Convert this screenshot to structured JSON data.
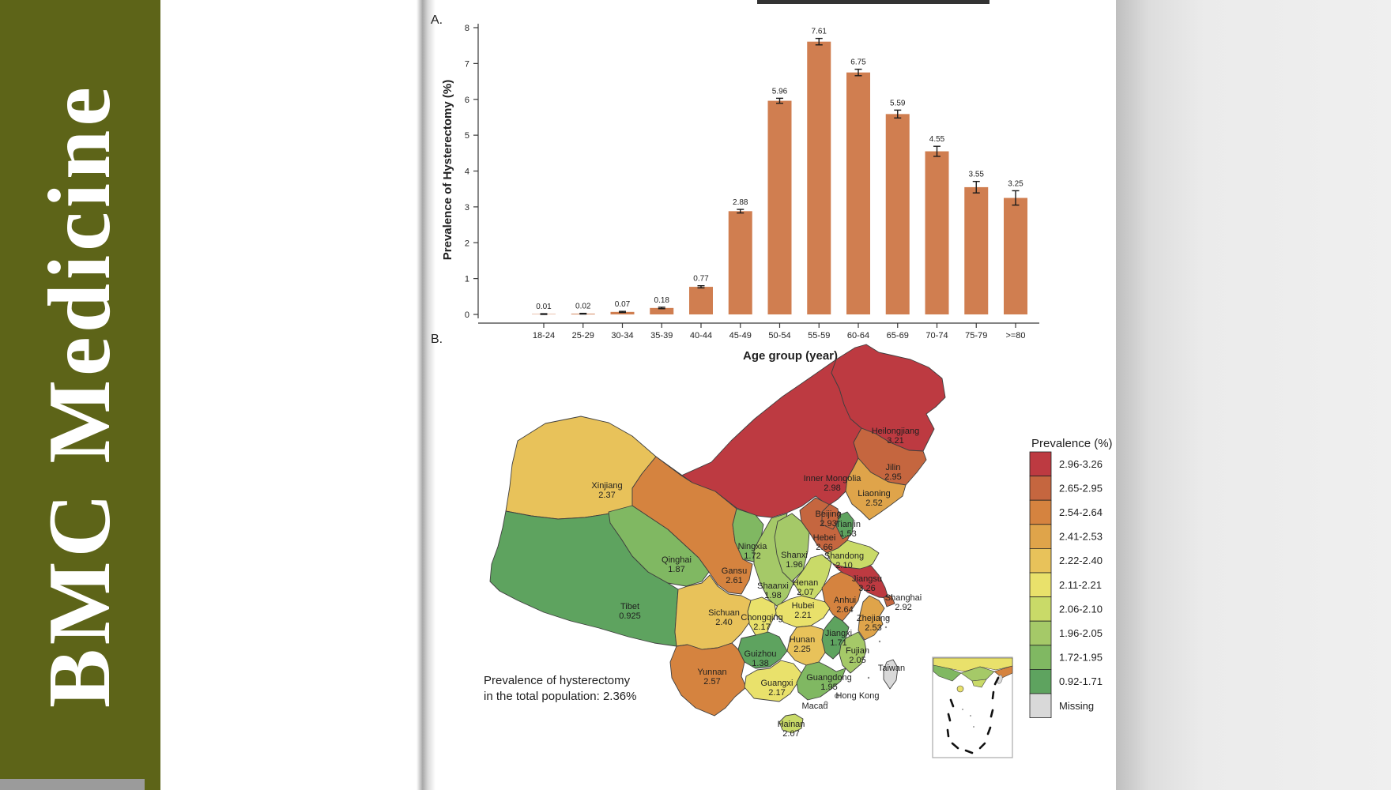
{
  "branding": {
    "journal_name": "BMC Medicine",
    "band_color": "#5d6418",
    "text_color": "#ffffff"
  },
  "figure": {
    "panel_a_label": "A.",
    "panel_b_label": "B."
  },
  "chart_data": [
    {
      "type": "bar",
      "panel": "A",
      "title": "",
      "xlabel": "Age group (year)",
      "ylabel": "Prevalence of Hysterectomy (%)",
      "categories": [
        "18-24",
        "25-29",
        "30-34",
        "35-39",
        "40-44",
        "45-49",
        "50-54",
        "55-59",
        "60-64",
        "65-69",
        "70-74",
        "75-79",
        ">=80"
      ],
      "values": [
        0.01,
        0.02,
        0.07,
        0.18,
        0.77,
        2.88,
        5.96,
        7.61,
        6.75,
        5.59,
        4.55,
        3.55,
        3.25
      ],
      "errors": [
        0.01,
        0.01,
        0.015,
        0.02,
        0.03,
        0.05,
        0.07,
        0.09,
        0.09,
        0.11,
        0.14,
        0.16,
        0.2
      ],
      "ylim": [
        0,
        8
      ],
      "yticks": [
        0,
        1,
        2,
        3,
        4,
        5,
        6,
        7,
        8
      ],
      "grid": false,
      "bar_color": "#d07e50",
      "error_color": "#1a1a1a"
    },
    {
      "type": "choropleth",
      "panel": "B",
      "region": "China",
      "legend_title": "Prevalence (%)",
      "note_line1": "Prevalence of hysterectomy",
      "note_line2": "in the total population: 2.36%",
      "legend_position": "right",
      "legend_classes": [
        {
          "label": "2.96-3.26",
          "color": "#bd3a41"
        },
        {
          "label": "2.65-2.95",
          "color": "#c5663f"
        },
        {
          "label": "2.54-2.64",
          "color": "#d5833f"
        },
        {
          "label": "2.41-2.53",
          "color": "#dfa44a"
        },
        {
          "label": "2.22-2.40",
          "color": "#e8c25a"
        },
        {
          "label": "2.11-2.21",
          "color": "#e9e16b"
        },
        {
          "label": "2.06-2.10",
          "color": "#c9da68"
        },
        {
          "label": "1.96-2.05",
          "color": "#a5c968"
        },
        {
          "label": "1.72-1.95",
          "color": "#80b862"
        },
        {
          "label": "0.92-1.71",
          "color": "#5ea35f"
        },
        {
          "label": "Missing",
          "color": "#d9d9d9"
        }
      ],
      "provinces": [
        {
          "key": "heilongjiang",
          "name": "Heilongjiang",
          "value": "3.21",
          "color": "#bd3a41"
        },
        {
          "key": "jilin",
          "name": "Jilin",
          "value": "2.95",
          "color": "#c5663f"
        },
        {
          "key": "liaoning",
          "name": "Liaoning",
          "value": "2.52",
          "color": "#dfa44a"
        },
        {
          "key": "inner-mongolia",
          "name": "Inner Mongolia",
          "value": "2.98",
          "color": "#bd3a41"
        },
        {
          "key": "beijing",
          "name": "Beijing",
          "value": "2.93",
          "color": "#c5663f"
        },
        {
          "key": "tianjin",
          "name": "Tianjin",
          "value": "1.53",
          "color": "#5ea35f"
        },
        {
          "key": "hebei",
          "name": "Hebei",
          "value": "2.66",
          "color": "#c5663f"
        },
        {
          "key": "shanxi",
          "name": "Shanxi",
          "value": "1.96",
          "color": "#a5c968"
        },
        {
          "key": "shandong",
          "name": "Shandong",
          "value": "2.10",
          "color": "#c9da68"
        },
        {
          "key": "henan",
          "name": "Henan",
          "value": "2.07",
          "color": "#c9da68"
        },
        {
          "key": "shaanxi",
          "name": "Shaanxi",
          "value": "1.98",
          "color": "#a5c968"
        },
        {
          "key": "ningxia",
          "name": "Ningxia",
          "value": "1.72",
          "color": "#80b862"
        },
        {
          "key": "gansu",
          "name": "Gansu",
          "value": "2.61",
          "color": "#d5833f"
        },
        {
          "key": "qinghai",
          "name": "Qinghai",
          "value": "1.87",
          "color": "#80b862"
        },
        {
          "key": "xinjiang",
          "name": "Xinjiang",
          "value": "2.37",
          "color": "#e8c25a"
        },
        {
          "key": "tibet",
          "name": "Tibet",
          "value": "0.925",
          "color": "#5ea35f"
        },
        {
          "key": "sichuan",
          "name": "Sichuan",
          "value": "2.40",
          "color": "#e8c25a"
        },
        {
          "key": "chongqing",
          "name": "Chongqing",
          "value": "2.17",
          "color": "#e9e16b"
        },
        {
          "key": "hubei",
          "name": "Hubei",
          "value": "2.21",
          "color": "#e9e16b"
        },
        {
          "key": "anhui",
          "name": "Anhui",
          "value": "2.64",
          "color": "#d5833f"
        },
        {
          "key": "jiangsu",
          "name": "Jiangsu",
          "value": "3.26",
          "color": "#bd3a41"
        },
        {
          "key": "shanghai",
          "name": "Shanghai",
          "value": "2.92",
          "color": "#c5663f"
        },
        {
          "key": "zhejiang",
          "name": "Zhejiang",
          "value": "2.53",
          "color": "#dfa44a"
        },
        {
          "key": "jiangxi",
          "name": "Jiangxi",
          "value": "1.71",
          "color": "#5ea35f"
        },
        {
          "key": "hunan",
          "name": "Hunan",
          "value": "2.25",
          "color": "#e8c25a"
        },
        {
          "key": "guizhou",
          "name": "Guizhou",
          "value": "1.38",
          "color": "#5ea35f"
        },
        {
          "key": "yunnan",
          "name": "Yunnan",
          "value": "2.57",
          "color": "#d5833f"
        },
        {
          "key": "guangxi",
          "name": "Guangxi",
          "value": "2.17",
          "color": "#e9e16b"
        },
        {
          "key": "guangdong",
          "name": "Guangdong",
          "value": "1.95",
          "color": "#80b862"
        },
        {
          "key": "fujian",
          "name": "Fujian",
          "value": "2.05",
          "color": "#a5c968"
        },
        {
          "key": "hainan",
          "name": "Hainan",
          "value": "2.07",
          "color": "#c9da68"
        },
        {
          "key": "taiwan",
          "name": "Taiwan",
          "value": "",
          "color": "#d9d9d9"
        },
        {
          "key": "hong-kong",
          "name": "Hong Kong",
          "value": "",
          "color": "#d9d9d9"
        },
        {
          "key": "macau",
          "name": "Macau",
          "value": "",
          "color": "#d9d9d9"
        }
      ]
    }
  ]
}
